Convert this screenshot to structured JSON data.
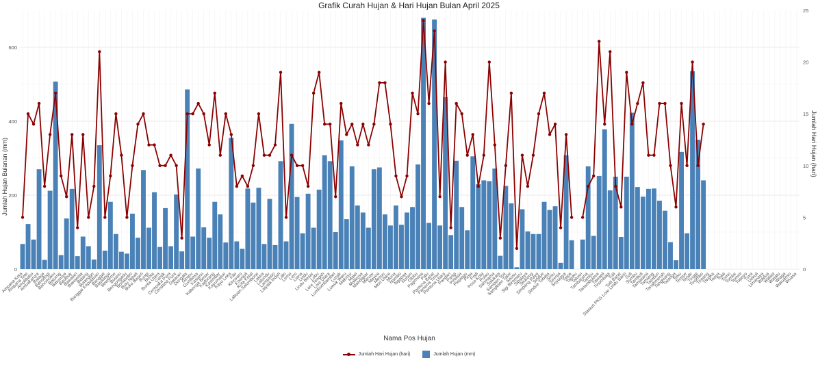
{
  "chart_data": {
    "type": "bar+line",
    "title": "Grafik Curah Hujan & Hari Hujan Bulan April 2025",
    "xlabel": "Nama Pos Hujan",
    "ylabel": "Jumlah Hujan Bulanan (mm)",
    "y2label": "Jumlah Hari Hujan (hari)",
    "ylim": [
      0,
      700
    ],
    "y2lim": [
      0,
      25
    ],
    "yticks": [
      0,
      200,
      400,
      600
    ],
    "y2ticks": [
      0,
      5,
      10,
      15,
      20,
      25
    ],
    "grid": true,
    "legend_position": "bottom",
    "bar_color": "#4a82b8",
    "line_color": "#8b0000",
    "series": [
      {
        "name": "Jumlah Hari Hujan (hari)",
        "kind": "line",
        "axis": "right"
      },
      {
        "name": "Jumlah Hujan (mm)",
        "kind": "bar",
        "axis": "left"
      }
    ],
    "categories": [
      "Ampana Kota",
      "Ampana Tete",
      "Amplibabo",
      "Amuakarura",
      "Balaga",
      "Bahodopi",
      "Bahomoleo",
      "Baturng",
      "Batusuya",
      "Baulbok",
      "Bawalan",
      "Bawasela",
      "Bidang",
      "Bulanggo",
      "Banggai Kepulauan",
      "Banggai",
      "Batuwega",
      "Beteleme",
      "Bolano",
      "Bongongadu",
      "Bonasebo",
      "Bulu Nipati",
      "Buko Baseri",
      "Bungi",
      "Bunta",
      "Bunta Utara",
      "Cantik",
      "Cempaka Pura",
      "Cendana Pura",
      "Dataran",
      "Dongala",
      "Gimpu",
      "Gumbasa",
      "Kasiano",
      "Kabonga Besar",
      "Kadorang",
      "Kasimbar",
      "Kayumalue",
      "Kayu Loka",
      "Kilo",
      "Kinovaro",
      "Koanjoli",
      "Kota Kotal",
      "Labuan Salumbone",
      "Lakea",
      "Lalundu",
      "Lampasio",
      "Laiyala Indah",
      "Lalo",
      "Lemo",
      "Lero",
      "Liana",
      "Lindu",
      "Lindu Besar",
      "Lobu",
      "Lore Tengah",
      "Lore Utara",
      "Lumbombambet",
      "Lusak",
      "Luwuk Waru",
      "Makmur",
      "Malei",
      "Malikusa",
      "Mandapar",
      "Maruar",
      "Mayoa",
      "Mesuu",
      "Mori Utara",
      "Muna",
      "Nambo",
      "Ngapaa",
      "Nuhon",
      "Olobu",
      "Pagimana",
      "Palu",
      "Pamona Barat",
      "Pamona Timur",
      "Pamona Utara",
      "Pandan",
      "Parigi",
      "Petasia",
      "Piapiagu",
      "Pinta",
      "Podi",
      "Poso Kota",
      "Pulau",
      "Sahmama",
      "Salukaia",
      "Sampan Toa",
      "Sampeien Tabe",
      "Sausu",
      "Sigi Biromaru",
      "Sibalaya",
      "Silokong",
      "Simpang Raya",
      "Sindue",
      "Sindue Tobata",
      "Siniu",
      "Sirenja",
      "Soyojaya",
      "Taipa",
      "Tajuku",
      "Taluan",
      "Tambarana",
      "Tambu",
      "Tanambulava",
      "Tawaeli",
      "Tinombala",
      "Toili",
      "Toili Barat",
      "Stasiun PKG Lore Lindu Bariri",
      "Suli",
      "Sumbu",
      "Tamboli",
      "Tamiatana",
      "Tamiang",
      "Tambun",
      "Tanahmerah",
      "Tangkiang",
      "Tatanga",
      "Teku",
      "Tempe",
      "Tende",
      "Tinggi",
      "Tinombo",
      "Tiroang",
      "Tiwaka",
      "Toaya",
      "Tolai",
      "Tomo",
      "Tombe",
      "Tomini",
      "Topoyo",
      "Tuva",
      "Uekuli",
      "Umanaya",
      "Wadua",
      "Walasi",
      "Watatu",
      "Wiaga",
      "Watuanso",
      "Wuasa"
    ],
    "bars": [
      68,
      122,
      80,
      270,
      25,
      212,
      507,
      38,
      137,
      217,
      35,
      88,
      62,
      26,
      335,
      50,
      182,
      95,
      47,
      42,
      150,
      85,
      268,
      112,
      208,
      60,
      165,
      62,
      202,
      48,
      486,
      88,
      272,
      113,
      85,
      182,
      148,
      72,
      355,
      75,
      55,
      218,
      180,
      220,
      68,
      190,
      65,
      292,
      75,
      393,
      195,
      97,
      204,
      112,
      215,
      308,
      292,
      100,
      348,
      135,
      278,
      172,
      153,
      112,
      270,
      275,
      148,
      118,
      172,
      120,
      153,
      168,
      283,
      680,
      125,
      675,
      118,
      465,
      92,
      293,
      168,
      105,
      305,
      230,
      240,
      238,
      272,
      36,
      225,
      178,
      5,
      162,
      102,
      95,
      95,
      182,
      160,
      170,
      17,
      308,
      78,
      0,
      80,
      278,
      90,
      252,
      378,
      213,
      250,
      87,
      250,
      423,
      222,
      196,
      217,
      218,
      185,
      158,
      73,
      24,
      317,
      97,
      535,
      350,
      240,
      0,
      0,
      0,
      0,
      0,
      0,
      0,
      0,
      0,
      0,
      0
    ],
    "line": [
      5,
      15,
      14,
      16,
      8,
      13,
      17,
      9,
      7,
      13,
      4,
      13,
      5,
      8,
      21,
      5,
      9,
      15,
      11,
      5,
      10,
      14,
      15,
      12,
      12,
      10,
      10,
      11,
      10,
      3,
      15,
      15,
      16,
      15,
      12,
      17,
      11,
      15,
      13,
      8,
      9,
      8,
      10,
      15,
      11,
      11,
      12,
      19,
      5,
      11,
      10,
      10,
      8,
      17,
      19,
      14,
      14,
      7,
      16,
      13,
      14,
      12,
      14,
      12,
      14,
      18,
      18,
      14,
      9,
      7,
      9,
      17,
      15,
      24,
      16,
      23,
      7,
      20,
      4,
      16,
      15,
      11,
      13,
      8,
      11,
      20,
      12,
      3,
      10,
      17,
      2,
      11,
      8,
      11,
      15,
      17,
      13,
      14,
      4,
      13,
      5,
      null,
      5,
      8,
      9,
      22,
      14,
      21,
      8,
      6,
      19,
      14,
      16,
      18,
      11,
      11,
      16,
      16,
      10,
      6,
      16,
      10,
      20,
      10,
      14,
      null,
      null,
      null,
      null,
      null,
      null,
      null,
      null,
      null,
      null,
      null
    ]
  }
}
